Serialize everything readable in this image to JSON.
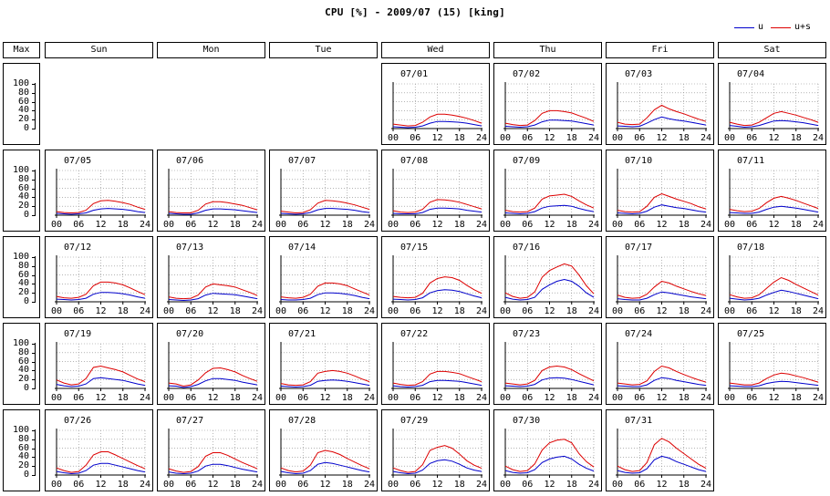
{
  "title": "CPU [%] - 2009/07 (15) [king]",
  "legend": [
    {
      "label": "u",
      "color": "#0000cc"
    },
    {
      "label": "u+s",
      "color": "#dd0000"
    }
  ],
  "headers": [
    "Max",
    "Sun",
    "Mon",
    "Tue",
    "Wed",
    "Thu",
    "Fri",
    "Sat"
  ],
  "max_axis": {
    "labels": [
      "100",
      "80",
      "60",
      "40",
      "20",
      "0"
    ]
  },
  "chart_data": {
    "type": "line",
    "title": "CPU [%] - 2009/07 (15) [king]",
    "month": "2009/07",
    "y_axis": {
      "range": [
        0,
        100
      ],
      "ticks": [
        0,
        20,
        40,
        60,
        80,
        100
      ]
    },
    "x_axis": {
      "range": [
        0,
        24
      ],
      "tick_labels": [
        "00",
        "06",
        "12",
        "18",
        "24"
      ]
    },
    "grid": true,
    "series_names": [
      "u",
      "u+s"
    ],
    "series_colors": {
      "u": "#0000cc",
      "u+s": "#dd0000"
    },
    "legend_placement": "top-right",
    "hours": [
      0,
      2,
      4,
      6,
      8,
      10,
      12,
      14,
      16,
      18,
      20,
      22,
      24
    ],
    "days": [
      {
        "date": "07/01",
        "u": [
          4,
          3,
          2,
          3,
          6,
          12,
          16,
          16,
          15,
          14,
          12,
          9,
          6
        ],
        "us": [
          10,
          8,
          6,
          7,
          14,
          26,
          32,
          32,
          30,
          27,
          23,
          18,
          12
        ]
      },
      {
        "date": "07/02",
        "u": [
          5,
          4,
          3,
          4,
          8,
          15,
          19,
          19,
          18,
          17,
          14,
          11,
          8
        ],
        "us": [
          12,
          9,
          7,
          8,
          18,
          34,
          40,
          40,
          38,
          35,
          29,
          23,
          16
        ]
      },
      {
        "date": "07/03",
        "u": [
          6,
          5,
          4,
          5,
          12,
          20,
          26,
          22,
          19,
          17,
          14,
          11,
          8
        ],
        "us": [
          14,
          10,
          9,
          10,
          24,
          42,
          52,
          44,
          38,
          33,
          27,
          21,
          16
        ]
      },
      {
        "date": "07/04",
        "u": [
          7,
          5,
          3,
          4,
          7,
          12,
          17,
          18,
          17,
          15,
          13,
          10,
          7
        ],
        "us": [
          14,
          10,
          7,
          8,
          14,
          24,
          34,
          38,
          34,
          30,
          25,
          20,
          14
        ]
      },
      {
        "date": "07/05",
        "u": [
          4,
          3,
          2,
          3,
          5,
          11,
          14,
          15,
          14,
          13,
          11,
          8,
          6
        ],
        "us": [
          8,
          6,
          5,
          6,
          11,
          26,
          32,
          33,
          31,
          28,
          24,
          18,
          13
        ]
      },
      {
        "date": "07/06",
        "u": [
          4,
          3,
          2,
          2,
          5,
          11,
          14,
          14,
          13,
          12,
          10,
          8,
          6
        ],
        "us": [
          8,
          6,
          5,
          5,
          11,
          25,
          30,
          30,
          28,
          25,
          22,
          17,
          12
        ]
      },
      {
        "date": "07/07",
        "u": [
          4,
          3,
          2,
          3,
          6,
          12,
          15,
          15,
          14,
          13,
          11,
          8,
          6
        ],
        "us": [
          9,
          7,
          5,
          6,
          12,
          27,
          33,
          32,
          30,
          27,
          23,
          18,
          13
        ]
      },
      {
        "date": "07/08",
        "u": [
          4,
          3,
          3,
          3,
          6,
          13,
          16,
          16,
          15,
          14,
          11,
          9,
          7
        ],
        "us": [
          10,
          7,
          6,
          7,
          13,
          29,
          35,
          34,
          32,
          29,
          24,
          19,
          14
        ]
      },
      {
        "date": "07/09",
        "u": [
          5,
          4,
          3,
          4,
          8,
          16,
          20,
          21,
          22,
          20,
          15,
          11,
          8
        ],
        "us": [
          11,
          8,
          7,
          8,
          16,
          36,
          43,
          45,
          47,
          42,
          32,
          23,
          16
        ]
      },
      {
        "date": "07/10",
        "u": [
          5,
          4,
          3,
          4,
          9,
          18,
          23,
          20,
          17,
          15,
          12,
          9,
          7
        ],
        "us": [
          11,
          8,
          7,
          8,
          20,
          40,
          48,
          42,
          36,
          31,
          26,
          19,
          14
        ]
      },
      {
        "date": "07/11",
        "u": [
          6,
          5,
          4,
          4,
          7,
          13,
          18,
          20,
          18,
          16,
          13,
          10,
          7
        ],
        "us": [
          13,
          10,
          8,
          9,
          15,
          28,
          38,
          42,
          38,
          33,
          27,
          21,
          15
        ]
      },
      {
        "date": "07/12",
        "u": [
          6,
          5,
          4,
          5,
          8,
          17,
          21,
          21,
          20,
          18,
          15,
          11,
          8
        ],
        "us": [
          12,
          9,
          8,
          10,
          17,
          36,
          44,
          44,
          42,
          38,
          31,
          23,
          16
        ]
      },
      {
        "date": "07/13",
        "u": [
          5,
          4,
          3,
          4,
          7,
          15,
          19,
          18,
          17,
          16,
          13,
          10,
          7
        ],
        "us": [
          11,
          8,
          7,
          8,
          15,
          33,
          40,
          38,
          36,
          33,
          27,
          21,
          14
        ]
      },
      {
        "date": "07/14",
        "u": [
          5,
          4,
          4,
          5,
          8,
          16,
          20,
          20,
          19,
          17,
          14,
          10,
          7
        ],
        "us": [
          11,
          9,
          8,
          10,
          17,
          35,
          42,
          42,
          40,
          36,
          29,
          22,
          15
        ]
      },
      {
        "date": "07/15",
        "u": [
          6,
          5,
          4,
          5,
          9,
          20,
          25,
          27,
          26,
          23,
          18,
          13,
          9
        ],
        "us": [
          12,
          10,
          9,
          10,
          19,
          42,
          52,
          56,
          54,
          48,
          37,
          27,
          19
        ]
      },
      {
        "date": "07/16",
        "u": [
          10,
          6,
          4,
          5,
          10,
          28,
          38,
          46,
          50,
          46,
          35,
          20,
          10
        ],
        "us": [
          20,
          12,
          8,
          10,
          22,
          55,
          70,
          78,
          85,
          80,
          60,
          36,
          18
        ]
      },
      {
        "date": "07/17",
        "u": [
          7,
          5,
          4,
          4,
          8,
          16,
          22,
          20,
          17,
          14,
          11,
          9,
          7
        ],
        "us": [
          15,
          10,
          8,
          9,
          17,
          33,
          46,
          42,
          35,
          29,
          23,
          18,
          14
        ]
      },
      {
        "date": "07/18",
        "u": [
          8,
          6,
          4,
          5,
          8,
          15,
          21,
          26,
          23,
          19,
          15,
          11,
          7
        ],
        "us": [
          16,
          11,
          8,
          9,
          16,
          30,
          44,
          54,
          48,
          39,
          31,
          23,
          15
        ]
      },
      {
        "date": "07/19",
        "u": [
          9,
          6,
          4,
          5,
          10,
          22,
          24,
          22,
          20,
          18,
          14,
          10,
          7
        ],
        "us": [
          19,
          12,
          8,
          10,
          22,
          47,
          50,
          46,
          42,
          37,
          29,
          21,
          15
        ]
      },
      {
        "date": "07/20",
        "u": [
          6,
          5,
          2,
          4,
          9,
          17,
          22,
          22,
          20,
          18,
          14,
          11,
          8
        ],
        "us": [
          12,
          10,
          5,
          8,
          19,
          35,
          45,
          46,
          42,
          37,
          29,
          22,
          16
        ]
      },
      {
        "date": "07/21",
        "u": [
          5,
          4,
          3,
          4,
          7,
          16,
          18,
          19,
          18,
          16,
          13,
          10,
          7
        ],
        "us": [
          11,
          8,
          7,
          8,
          15,
          34,
          38,
          40,
          38,
          34,
          28,
          21,
          15
        ]
      },
      {
        "date": "07/22",
        "u": [
          6,
          4,
          3,
          4,
          7,
          15,
          18,
          18,
          17,
          16,
          13,
          10,
          7
        ],
        "us": [
          12,
          9,
          7,
          8,
          15,
          32,
          38,
          38,
          36,
          33,
          27,
          21,
          15
        ]
      },
      {
        "date": "07/23",
        "u": [
          6,
          5,
          4,
          5,
          9,
          19,
          23,
          24,
          23,
          20,
          16,
          12,
          8
        ],
        "us": [
          12,
          10,
          8,
          10,
          18,
          40,
          48,
          50,
          48,
          42,
          33,
          25,
          17
        ]
      },
      {
        "date": "07/24",
        "u": [
          6,
          5,
          4,
          4,
          8,
          18,
          24,
          22,
          18,
          15,
          12,
          9,
          7
        ],
        "us": [
          12,
          10,
          8,
          9,
          17,
          38,
          50,
          46,
          38,
          31,
          25,
          19,
          14
        ]
      },
      {
        "date": "07/25",
        "u": [
          6,
          5,
          4,
          4,
          6,
          11,
          14,
          16,
          15,
          13,
          11,
          9,
          7
        ],
        "us": [
          12,
          10,
          8,
          8,
          12,
          22,
          30,
          34,
          32,
          28,
          24,
          19,
          14
        ]
      },
      {
        "date": "07/26",
        "u": [
          8,
          5,
          3,
          4,
          10,
          22,
          26,
          26,
          22,
          18,
          14,
          10,
          7
        ],
        "us": [
          16,
          10,
          6,
          8,
          22,
          45,
          52,
          52,
          45,
          37,
          29,
          21,
          14
        ]
      },
      {
        "date": "07/27",
        "u": [
          7,
          4,
          3,
          4,
          9,
          20,
          24,
          24,
          21,
          17,
          13,
          10,
          7
        ],
        "us": [
          14,
          9,
          6,
          8,
          19,
          42,
          50,
          50,
          44,
          36,
          28,
          21,
          14
        ]
      },
      {
        "date": "07/28",
        "u": [
          8,
          5,
          3,
          4,
          10,
          24,
          28,
          26,
          22,
          18,
          14,
          10,
          7
        ],
        "us": [
          16,
          10,
          7,
          9,
          22,
          50,
          55,
          52,
          46,
          37,
          29,
          21,
          14
        ]
      },
      {
        "date": "07/29",
        "u": [
          8,
          5,
          3,
          4,
          11,
          26,
          32,
          34,
          31,
          24,
          16,
          11,
          8
        ],
        "us": [
          16,
          10,
          6,
          8,
          23,
          55,
          62,
          66,
          60,
          47,
          32,
          22,
          15
        ]
      },
      {
        "date": "07/30",
        "u": [
          10,
          6,
          4,
          5,
          12,
          28,
          36,
          40,
          42,
          36,
          24,
          15,
          9
        ],
        "us": [
          20,
          12,
          8,
          10,
          25,
          56,
          72,
          78,
          80,
          72,
          48,
          30,
          18
        ]
      },
      {
        "date": "07/31",
        "u": [
          10,
          6,
          4,
          5,
          14,
          34,
          42,
          38,
          30,
          24,
          18,
          12,
          8
        ],
        "us": [
          20,
          12,
          8,
          10,
          28,
          68,
          82,
          74,
          60,
          48,
          36,
          24,
          15
        ]
      }
    ]
  }
}
